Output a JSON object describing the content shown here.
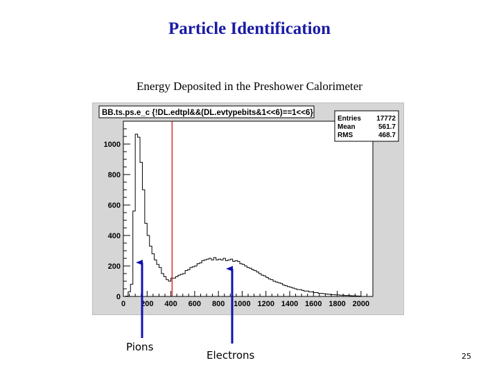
{
  "slide": {
    "title": "Particle Identification",
    "subtitle": "Energy Deposited in the Preshower Calorimeter",
    "page_number": "25"
  },
  "annotations": {
    "pions": "Pions",
    "electrons": "Electrons",
    "arrow_color": "#1010b0"
  },
  "chart_data": {
    "type": "bar",
    "histogram_title": "BB.ts.ps.e_c {!DL.edtpl&&(DL.evtypebits&1<<6)==1<<6}",
    "stats": [
      {
        "label": "Entries",
        "value": "17772"
      },
      {
        "label": "Mean",
        "value": "561.7"
      },
      {
        "label": "RMS",
        "value": "468.7"
      }
    ],
    "xlim": [
      0,
      2100
    ],
    "ylim": [
      0,
      1150
    ],
    "xticks": [
      "0",
      "200",
      "400",
      "600",
      "800",
      "1000",
      "1200",
      "1400",
      "1600",
      "1800",
      "2000"
    ],
    "yticks": [
      "0",
      "200",
      "400",
      "600",
      "800",
      "1000"
    ],
    "cut_line_x": 410,
    "cut_line_color": "#d00000",
    "grid": false,
    "bin_width": 20,
    "x": [
      0,
      20,
      40,
      60,
      80,
      100,
      120,
      140,
      160,
      180,
      200,
      220,
      240,
      260,
      280,
      300,
      320,
      340,
      360,
      380,
      400,
      420,
      440,
      460,
      480,
      500,
      520,
      540,
      560,
      580,
      600,
      620,
      640,
      660,
      680,
      700,
      720,
      740,
      760,
      780,
      800,
      820,
      840,
      860,
      880,
      900,
      920,
      940,
      960,
      980,
      1000,
      1020,
      1040,
      1060,
      1080,
      1100,
      1120,
      1140,
      1160,
      1180,
      1200,
      1220,
      1240,
      1260,
      1280,
      1300,
      1320,
      1340,
      1360,
      1380,
      1400,
      1420,
      1440,
      1460,
      1480,
      1500,
      1520,
      1540,
      1560,
      1580,
      1600,
      1620,
      1640,
      1660,
      1680,
      1700,
      1720,
      1740,
      1760,
      1780,
      1800,
      1820,
      1840,
      1860,
      1880,
      1900,
      1920,
      1940,
      1960,
      1980
    ],
    "values": [
      0,
      2,
      30,
      80,
      560,
      1065,
      1045,
      880,
      700,
      480,
      400,
      330,
      280,
      240,
      210,
      190,
      150,
      130,
      110,
      100,
      120,
      120,
      130,
      140,
      145,
      150,
      170,
      175,
      190,
      195,
      200,
      215,
      220,
      235,
      240,
      245,
      250,
      240,
      255,
      240,
      245,
      240,
      250,
      235,
      240,
      245,
      230,
      235,
      230,
      215,
      210,
      200,
      190,
      185,
      175,
      170,
      160,
      150,
      140,
      135,
      125,
      115,
      110,
      100,
      95,
      90,
      85,
      75,
      70,
      65,
      60,
      55,
      50,
      45,
      45,
      40,
      35,
      35,
      30,
      30,
      25,
      25,
      20,
      20,
      18,
      16,
      14,
      12,
      12,
      10,
      10,
      8,
      8,
      6,
      6,
      5,
      4,
      4,
      3,
      2
    ]
  }
}
